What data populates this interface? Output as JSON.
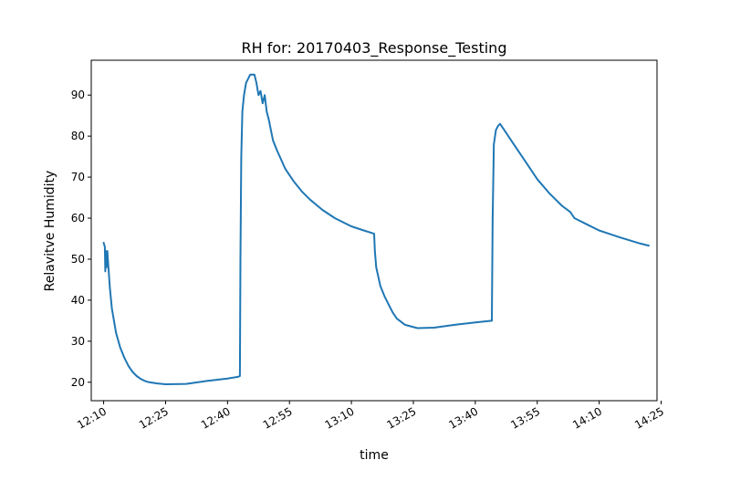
{
  "chart_data": {
    "type": "line",
    "title": "RH for: 20170403_Response_Testing",
    "xlabel": "time",
    "ylabel": "Relavitve Humidity",
    "x_unit": "time of day (HH:MM)",
    "xlim": [
      "12:07",
      "14:24"
    ],
    "ylim": [
      15.5,
      98.5
    ],
    "x_ticks": [
      "12:10",
      "12:25",
      "12:40",
      "12:55",
      "13:10",
      "13:25",
      "13:40",
      "13:55",
      "14:10",
      "14:25"
    ],
    "y_ticks": [
      20,
      30,
      40,
      50,
      60,
      70,
      80,
      90
    ],
    "grid": false,
    "legend": false,
    "series": [
      {
        "color": "#1f77b4",
        "points": [
          [
            "12:10:00",
            54.0
          ],
          [
            "12:10:18",
            53.0
          ],
          [
            "12:10:24",
            47.0
          ],
          [
            "12:10:30",
            52.0
          ],
          [
            "12:10:42",
            48.0
          ],
          [
            "12:10:54",
            52.0
          ],
          [
            "12:11:30",
            43.0
          ],
          [
            "12:12:00",
            38.0
          ],
          [
            "12:13:00",
            32.0
          ],
          [
            "12:14:00",
            28.5
          ],
          [
            "12:15:00",
            26.0
          ],
          [
            "12:16:00",
            24.0
          ],
          [
            "12:17:00",
            22.5
          ],
          [
            "12:18:00",
            21.5
          ],
          [
            "12:19:00",
            20.8
          ],
          [
            "12:20:00",
            20.3
          ],
          [
            "12:21:00",
            20.0
          ],
          [
            "12:23:00",
            19.7
          ],
          [
            "12:25:00",
            19.5
          ],
          [
            "12:30:00",
            19.6
          ],
          [
            "12:35:00",
            20.3
          ],
          [
            "12:40:00",
            20.9
          ],
          [
            "12:42:30",
            21.3
          ],
          [
            "12:43:00",
            21.5
          ],
          [
            "12:43:08",
            50.0
          ],
          [
            "12:43:20",
            75.0
          ],
          [
            "12:43:36",
            86.0
          ],
          [
            "12:44:00",
            90.0
          ],
          [
            "12:44:30",
            93.0
          ],
          [
            "12:45:00",
            94.0
          ],
          [
            "12:45:30",
            95.0
          ],
          [
            "12:46:30",
            95.0
          ],
          [
            "12:47:00",
            93.0
          ],
          [
            "12:47:30",
            90.0
          ],
          [
            "12:48:00",
            91.0
          ],
          [
            "12:48:30",
            88.0
          ],
          [
            "12:49:00",
            90.0
          ],
          [
            "12:49:30",
            86.0
          ],
          [
            "12:50:00",
            84.0
          ],
          [
            "12:51:00",
            79.0
          ],
          [
            "12:52:00",
            76.5
          ],
          [
            "12:54:00",
            72.0
          ],
          [
            "12:56:00",
            69.0
          ],
          [
            "12:58:00",
            66.5
          ],
          [
            "13:00:00",
            64.5
          ],
          [
            "13:03:00",
            62.0
          ],
          [
            "13:06:00",
            60.0
          ],
          [
            "13:10:00",
            58.0
          ],
          [
            "13:13:00",
            57.0
          ],
          [
            "13:15:30",
            56.2
          ],
          [
            "13:15:40",
            52.0
          ],
          [
            "13:16:00",
            48.0
          ],
          [
            "13:17:00",
            43.5
          ],
          [
            "13:18:00",
            41.0
          ],
          [
            "13:19:00",
            39.0
          ],
          [
            "13:20:00",
            37.0
          ],
          [
            "13:21:00",
            35.5
          ],
          [
            "13:23:00",
            34.0
          ],
          [
            "13:26:00",
            33.2
          ],
          [
            "13:30:00",
            33.3
          ],
          [
            "13:35:00",
            34.0
          ],
          [
            "13:40:00",
            34.6
          ],
          [
            "13:44:00",
            35.0
          ],
          [
            "13:44:12",
            60.0
          ],
          [
            "13:44:30",
            78.0
          ],
          [
            "13:45:00",
            81.5
          ],
          [
            "13:45:30",
            82.5
          ],
          [
            "13:46:00",
            83.0
          ],
          [
            "13:47:00",
            81.5
          ],
          [
            "13:49:00",
            78.5
          ],
          [
            "13:52:00",
            74.0
          ],
          [
            "13:55:00",
            69.5
          ],
          [
            "13:58:00",
            66.0
          ],
          [
            "14:01:00",
            63.0
          ],
          [
            "14:03:00",
            61.5
          ],
          [
            "14:04:00",
            60.0
          ],
          [
            "14:07:00",
            58.5
          ],
          [
            "14:10:00",
            57.0
          ],
          [
            "14:15:00",
            55.3
          ],
          [
            "14:20:00",
            53.8
          ],
          [
            "14:22:00",
            53.3
          ]
        ]
      }
    ]
  }
}
